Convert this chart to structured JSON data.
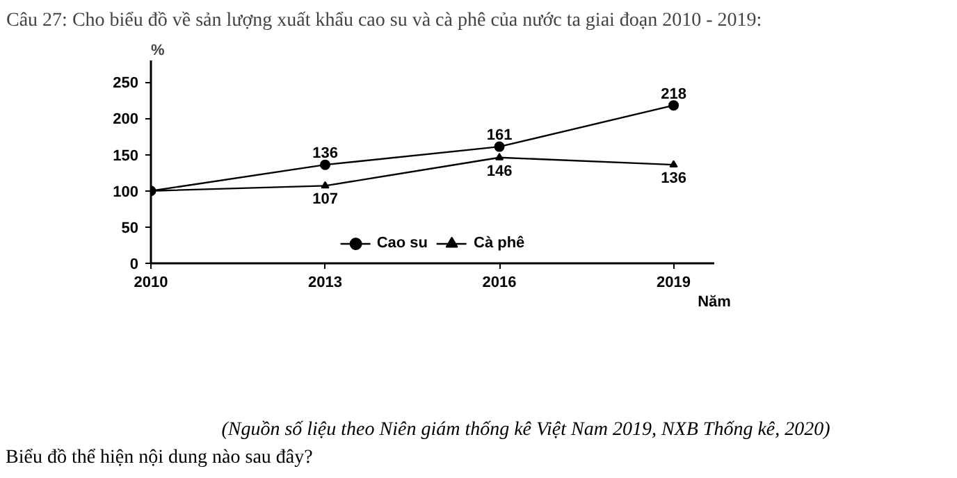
{
  "chart_data": {
    "type": "line",
    "title": "Câu 27: Cho biểu đồ về sản lượng xuất khẩu cao su và cà phê của nước ta giai đoạn 2010 - 2019:",
    "xlabel": "Năm",
    "ylabel": "%",
    "x": [
      2010,
      2013,
      2016,
      2019
    ],
    "xlim": [
      2010,
      2019.7
    ],
    "xticks": [
      2010,
      2013,
      2016,
      2019
    ],
    "ylim": [
      0,
      280
    ],
    "yticks": [
      0,
      50,
      100,
      150,
      200,
      250
    ],
    "series": [
      {
        "name": "Cao su",
        "color": "#000000",
        "marker": "circle",
        "values": [
          100,
          136,
          161,
          218
        ],
        "value_labels": [
          null,
          "136",
          "161",
          "218"
        ]
      },
      {
        "name": "Cà phê",
        "color": "#000000",
        "marker": "triangle",
        "values": [
          100,
          107,
          146,
          136
        ],
        "value_labels": [
          null,
          "107",
          "146",
          "136"
        ]
      }
    ],
    "grid": false,
    "legend": "bottom",
    "line_style": "solid",
    "annotations": [
      "(Nguồn số liệu theo Niên giám thống kê Việt Nam 2019, NXB Thống kê, 2020)",
      "Biểu đồ thể hiện nội dung nào sau đây?"
    ]
  }
}
